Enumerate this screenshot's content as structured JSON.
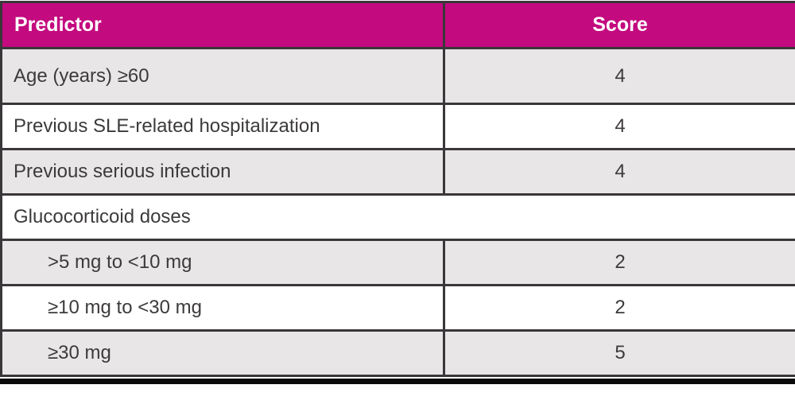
{
  "colors": {
    "header_background": "#c30a7f",
    "header_text": "#ffffff",
    "row_shaded": "#e8e6e7",
    "row_plain": "#ffffff",
    "border": "#3a373a",
    "body_text": "#3d3a3c",
    "bottom_rule": "#0b0b0b"
  },
  "table": {
    "columns": [
      {
        "label": "Predictor"
      },
      {
        "label": "Score"
      }
    ],
    "rows": [
      {
        "predictor": "Age (years) ≥60",
        "score": "4"
      },
      {
        "predictor": "Previous SLE-related hospitalization",
        "score": "4"
      },
      {
        "predictor": "Previous serious infection",
        "score": "4"
      },
      {
        "predictor": "Glucocorticoid doses",
        "score": "",
        "group_header": true
      },
      {
        "predictor": ">5 mg to <10 mg",
        "score": "2",
        "indent": true
      },
      {
        "predictor": "≥10 mg to <30 mg",
        "score": "2",
        "indent": true
      },
      {
        "predictor": "≥30 mg",
        "score": "5",
        "indent": true
      }
    ]
  }
}
